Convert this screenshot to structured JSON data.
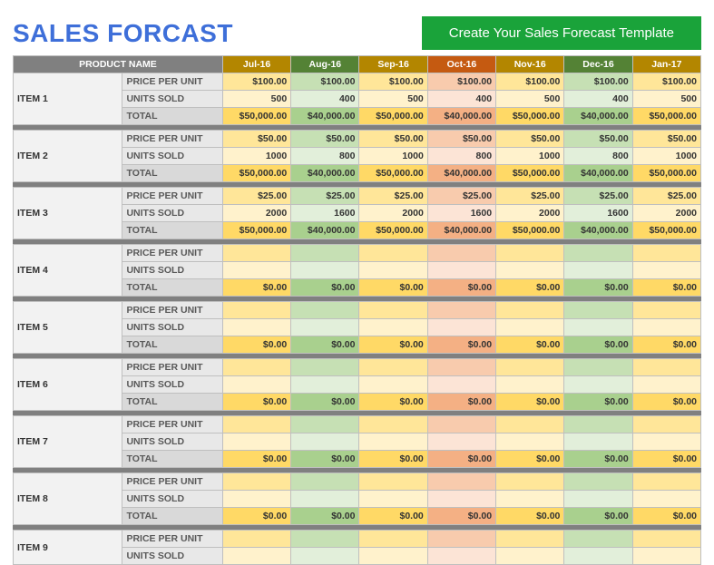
{
  "title": {
    "text": "SALES FORCAST",
    "color": "#3e6fd9"
  },
  "banner": {
    "text": "Create Your Sales Forecast Template",
    "bg": "#1aa33a"
  },
  "colwidths": {
    "product": 120,
    "metric": 110,
    "month": 75
  },
  "months": [
    {
      "label": "Jul-16",
      "header_bg": "#b38600",
      "ppu_bg": "#ffe699",
      "units_bg": "#fff2cc",
      "total_bg": "#ffd966"
    },
    {
      "label": "Aug-16",
      "header_bg": "#548235",
      "ppu_bg": "#c6e0b4",
      "units_bg": "#e2efda",
      "total_bg": "#a9d08e"
    },
    {
      "label": "Sep-16",
      "header_bg": "#b38600",
      "ppu_bg": "#ffe699",
      "units_bg": "#fff2cc",
      "total_bg": "#ffd966"
    },
    {
      "label": "Oct-16",
      "header_bg": "#c55a11",
      "ppu_bg": "#f8cbad",
      "units_bg": "#fce4d6",
      "total_bg": "#f4b084"
    },
    {
      "label": "Nov-16",
      "header_bg": "#b38600",
      "ppu_bg": "#ffe699",
      "units_bg": "#fff2cc",
      "total_bg": "#ffd966"
    },
    {
      "label": "Dec-16",
      "header_bg": "#548235",
      "ppu_bg": "#c6e0b4",
      "units_bg": "#e2efda",
      "total_bg": "#a9d08e"
    },
    {
      "label": "Jan-17",
      "header_bg": "#b38600",
      "ppu_bg": "#ffe699",
      "units_bg": "#fff2cc",
      "total_bg": "#ffd966"
    }
  ],
  "header": {
    "product": "PRODUCT NAME"
  },
  "metrics": {
    "ppu": "PRICE PER UNIT",
    "units": "UNITS SOLD",
    "total": "TOTAL"
  },
  "items": [
    {
      "name": "ITEM 1",
      "ppu": [
        "$100.00",
        "$100.00",
        "$100.00",
        "$100.00",
        "$100.00",
        "$100.00",
        "$100.00"
      ],
      "units": [
        "500",
        "400",
        "500",
        "400",
        "500",
        "400",
        "500"
      ],
      "total": [
        "$50,000.00",
        "$40,000.00",
        "$50,000.00",
        "$40,000.00",
        "$50,000.00",
        "$40,000.00",
        "$50,000.00"
      ]
    },
    {
      "name": "ITEM 2",
      "ppu": [
        "$50.00",
        "$50.00",
        "$50.00",
        "$50.00",
        "$50.00",
        "$50.00",
        "$50.00"
      ],
      "units": [
        "1000",
        "800",
        "1000",
        "800",
        "1000",
        "800",
        "1000"
      ],
      "total": [
        "$50,000.00",
        "$40,000.00",
        "$50,000.00",
        "$40,000.00",
        "$50,000.00",
        "$40,000.00",
        "$50,000.00"
      ]
    },
    {
      "name": "ITEM 3",
      "ppu": [
        "$25.00",
        "$25.00",
        "$25.00",
        "$25.00",
        "$25.00",
        "$25.00",
        "$25.00"
      ],
      "units": [
        "2000",
        "1600",
        "2000",
        "1600",
        "2000",
        "1600",
        "2000"
      ],
      "total": [
        "$50,000.00",
        "$40,000.00",
        "$50,000.00",
        "$40,000.00",
        "$50,000.00",
        "$40,000.00",
        "$50,000.00"
      ]
    },
    {
      "name": "ITEM 4",
      "ppu": [
        "",
        "",
        "",
        "",
        "",
        "",
        ""
      ],
      "units": [
        "",
        "",
        "",
        "",
        "",
        "",
        ""
      ],
      "total": [
        "$0.00",
        "$0.00",
        "$0.00",
        "$0.00",
        "$0.00",
        "$0.00",
        "$0.00"
      ]
    },
    {
      "name": "ITEM 5",
      "ppu": [
        "",
        "",
        "",
        "",
        "",
        "",
        ""
      ],
      "units": [
        "",
        "",
        "",
        "",
        "",
        "",
        ""
      ],
      "total": [
        "$0.00",
        "$0.00",
        "$0.00",
        "$0.00",
        "$0.00",
        "$0.00",
        "$0.00"
      ]
    },
    {
      "name": "ITEM 6",
      "ppu": [
        "",
        "",
        "",
        "",
        "",
        "",
        ""
      ],
      "units": [
        "",
        "",
        "",
        "",
        "",
        "",
        ""
      ],
      "total": [
        "$0.00",
        "$0.00",
        "$0.00",
        "$0.00",
        "$0.00",
        "$0.00",
        "$0.00"
      ]
    },
    {
      "name": "ITEM 7",
      "ppu": [
        "",
        "",
        "",
        "",
        "",
        "",
        ""
      ],
      "units": [
        "",
        "",
        "",
        "",
        "",
        "",
        ""
      ],
      "total": [
        "$0.00",
        "$0.00",
        "$0.00",
        "$0.00",
        "$0.00",
        "$0.00",
        "$0.00"
      ]
    },
    {
      "name": "ITEM 8",
      "ppu": [
        "",
        "",
        "",
        "",
        "",
        "",
        ""
      ],
      "units": [
        "",
        "",
        "",
        "",
        "",
        "",
        ""
      ],
      "total": [
        "$0.00",
        "$0.00",
        "$0.00",
        "$0.00",
        "$0.00",
        "$0.00",
        "$0.00"
      ]
    },
    {
      "name": "ITEM 9",
      "partial": true,
      "ppu": [
        "",
        "",
        "",
        "",
        "",
        "",
        ""
      ],
      "units": [
        "",
        "",
        "",
        "",
        "",
        "",
        ""
      ]
    }
  ]
}
